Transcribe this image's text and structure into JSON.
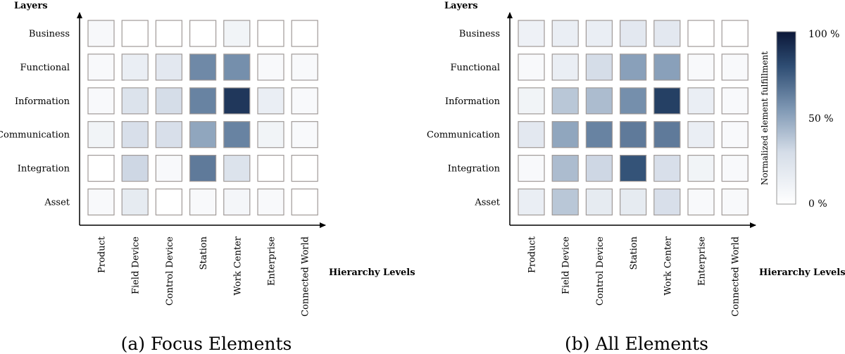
{
  "chart_data": [
    {
      "type": "heatmap",
      "title": "(a) Focus Elements",
      "xlabel": "Hierarchy Levels",
      "ylabel": "Layers",
      "rows": [
        "Business",
        "Functional",
        "Information",
        "Communication",
        "Integration",
        "Asset"
      ],
      "columns": [
        "Product",
        "Field Device",
        "Control Device",
        "Station",
        "Work Center",
        "Enterprise",
        "Connected World"
      ],
      "values": [
        [
          0.06,
          0.0,
          0.0,
          0.0,
          0.1,
          0.0,
          0.0
        ],
        [
          0.05,
          0.15,
          0.2,
          0.6,
          0.58,
          0.05,
          0.05
        ],
        [
          0.05,
          0.25,
          0.3,
          0.62,
          0.88,
          0.15,
          0.05
        ],
        [
          0.1,
          0.28,
          0.28,
          0.5,
          0.62,
          0.1,
          0.05
        ],
        [
          0.0,
          0.32,
          0.05,
          0.65,
          0.25,
          0.0,
          0.0
        ],
        [
          0.05,
          0.18,
          0.0,
          0.05,
          0.08,
          0.05,
          0.0
        ]
      ]
    },
    {
      "type": "heatmap",
      "title": "(b) All Elements",
      "xlabel": "Hierarchy Levels",
      "ylabel": "Layers",
      "rows": [
        "Business",
        "Functional",
        "Information",
        "Communication",
        "Integration",
        "Asset"
      ],
      "columns": [
        "Product",
        "Field Device",
        "Control Device",
        "Station",
        "Work Center",
        "Enterprise",
        "Connected World"
      ],
      "values": [
        [
          0.12,
          0.15,
          0.15,
          0.2,
          0.2,
          0.0,
          0.0
        ],
        [
          0.05,
          0.15,
          0.3,
          0.52,
          0.52,
          0.05,
          0.05
        ],
        [
          0.1,
          0.38,
          0.42,
          0.58,
          0.85,
          0.15,
          0.05
        ],
        [
          0.2,
          0.5,
          0.62,
          0.65,
          0.65,
          0.15,
          0.05
        ],
        [
          0.05,
          0.42,
          0.32,
          0.78,
          0.28,
          0.1,
          0.05
        ],
        [
          0.15,
          0.38,
          0.18,
          0.18,
          0.28,
          0.05,
          0.05
        ]
      ]
    }
  ],
  "colorbar": {
    "label": "Normalized element fulfillment",
    "ticks": [
      "100 %",
      "50 %",
      "0 %"
    ],
    "min_color": "#ffffff",
    "max_color": "#0b1738"
  }
}
